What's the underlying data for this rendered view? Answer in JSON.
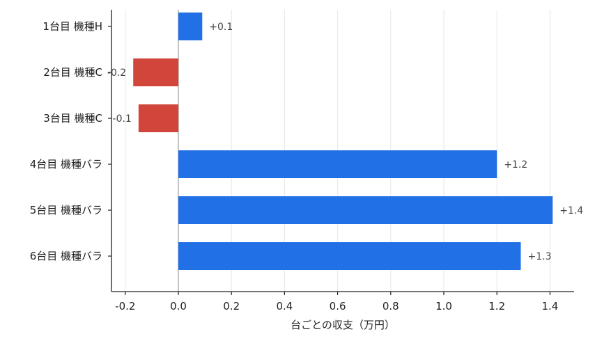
{
  "chart_data": {
    "type": "bar",
    "orientation": "horizontal",
    "categories": [
      "1台目 機種H",
      "2台目 機種C",
      "3台目 機種C",
      "4台目 機種バラ",
      "5台目 機種バラ",
      "6台目 機種バラ"
    ],
    "values": [
      0.09,
      -0.17,
      -0.15,
      1.2,
      1.41,
      1.29
    ],
    "data_labels": [
      "+0.1",
      "-0.2",
      "-0.1",
      "+1.2",
      "+1.4",
      "+1.3"
    ],
    "xlabel": "台ごとの収支（万円）",
    "ylabel": "",
    "title": "",
    "xlim": [
      -0.25,
      1.49
    ],
    "xticks": [
      -0.2,
      0.0,
      0.2,
      0.4,
      0.6,
      0.8,
      1.0,
      1.2,
      1.4
    ],
    "xtick_labels": [
      "-0.2",
      "0.0",
      "0.2",
      "0.4",
      "0.6",
      "0.8",
      "1.0",
      "1.2",
      "1.4"
    ],
    "grid": "vertical",
    "colors": {
      "positive": "#2170e6",
      "negative": "#d1453b",
      "zero_line": "#888888",
      "grid": "#e6e6e6",
      "axis": "#222222"
    }
  }
}
